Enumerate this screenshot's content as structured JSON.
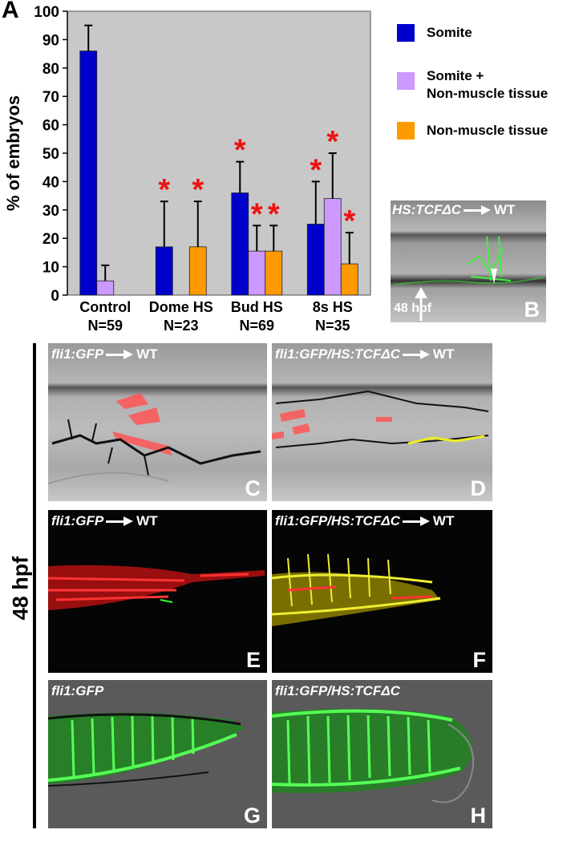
{
  "figure": {
    "panel_a_letter": "A",
    "side_label": "48 hpf"
  },
  "chart_data": {
    "type": "bar",
    "ylabel": "% of embryos",
    "ylim": [
      0,
      100
    ],
    "yticks": [
      0,
      10,
      20,
      30,
      40,
      50,
      60,
      70,
      80,
      90,
      100
    ],
    "categories": [
      "Control",
      "Dome HS",
      "Bud HS",
      "8s HS"
    ],
    "category_n": [
      "N=59",
      "N=23",
      "N=69",
      "N=35"
    ],
    "series": [
      {
        "name": "Somite",
        "color": "#0000cc",
        "values": [
          86,
          17,
          36,
          25
        ],
        "errors": [
          9,
          16,
          11,
          15
        ]
      },
      {
        "name": "Somite + Non-muscle tissue",
        "color": "#cc99ff",
        "values": [
          5,
          0,
          15.5,
          34
        ],
        "errors": [
          5.5,
          0,
          9,
          16
        ]
      },
      {
        "name": "Non-muscle tissue",
        "color": "#ff9900",
        "values": [
          0,
          17,
          15.5,
          11
        ],
        "errors": [
          0,
          16,
          9,
          11
        ]
      }
    ],
    "significance": [
      {
        "category": 1,
        "series": 0,
        "label": "*"
      },
      {
        "category": 1,
        "series": 2,
        "label": "*"
      },
      {
        "category": 2,
        "series": 0,
        "label": "*"
      },
      {
        "category": 2,
        "series": 1,
        "label": "*"
      },
      {
        "category": 2,
        "series": 2,
        "label": "*"
      },
      {
        "category": 3,
        "series": 0,
        "label": "*"
      },
      {
        "category": 3,
        "series": 1,
        "label": "*"
      },
      {
        "category": 3,
        "series": 2,
        "label": "*"
      }
    ],
    "legend_position": "right",
    "grid": false
  },
  "legend": {
    "somite": "Somite",
    "somite_plus_line1": "Somite +",
    "somite_plus_line2": "Non-muscle tissue",
    "non_muscle": "Non-muscle tissue"
  },
  "panels": {
    "b": {
      "letter": "B",
      "label": "HS:TCFΔC",
      "target": "WT",
      "stage": "48 hpf"
    },
    "c": {
      "letter": "C",
      "label": "fli1:GFP",
      "target": "WT"
    },
    "d": {
      "letter": "D",
      "label": "fli1:GFP/HS:TCFΔC",
      "target": "WT"
    },
    "e": {
      "letter": "E",
      "label": "fli1:GFP",
      "target": "WT"
    },
    "f": {
      "letter": "F",
      "label": "fli1:GFP/HS:TCFΔC",
      "target": "WT"
    },
    "g": {
      "letter": "G",
      "label": "fli1:GFP"
    },
    "h": {
      "letter": "H",
      "label": "fli1:GFP/HS:TCFΔC"
    }
  }
}
